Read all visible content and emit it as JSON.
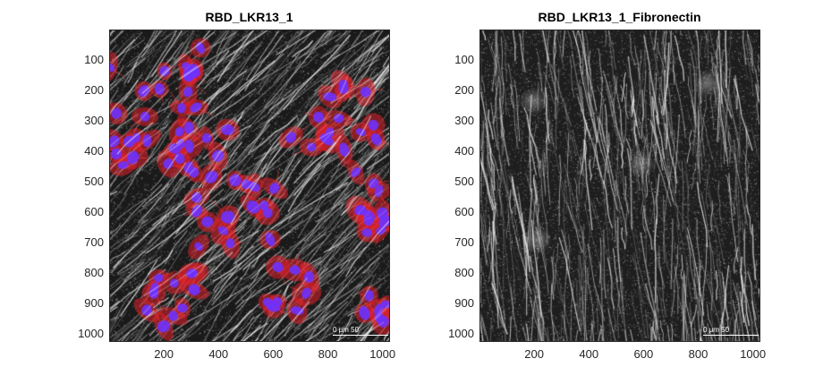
{
  "figure": {
    "panels": [
      {
        "id": "left",
        "title": "RBD_LKR13_1",
        "image": "composite fluorescence micrograph: red cytoplasm, blue nuclei, white fibronectin fibers on dark background",
        "scale_bar_label": "0 μm 50",
        "x_ticks": [
          "200",
          "400",
          "600",
          "800",
          "1000"
        ],
        "y_ticks": [
          "100",
          "200",
          "300",
          "400",
          "500",
          "600",
          "700",
          "800",
          "900",
          "1000"
        ]
      },
      {
        "id": "right",
        "title": "RBD_LKR13_1_Fibronectin",
        "image": "grayscale fluorescence micrograph of fibronectin fibers on dark background",
        "scale_bar_label": "0 μm 50",
        "x_ticks": [
          "200",
          "400",
          "600",
          "800",
          "1000"
        ],
        "y_ticks": [
          "100",
          "200",
          "300",
          "400",
          "500",
          "600",
          "700",
          "800",
          "900",
          "1000"
        ]
      }
    ],
    "colors": {
      "cytoplasm": "#e0202a",
      "nucleus": "#6a2cff",
      "fibers": "#ffffff",
      "background": "#1c1c1c"
    }
  }
}
